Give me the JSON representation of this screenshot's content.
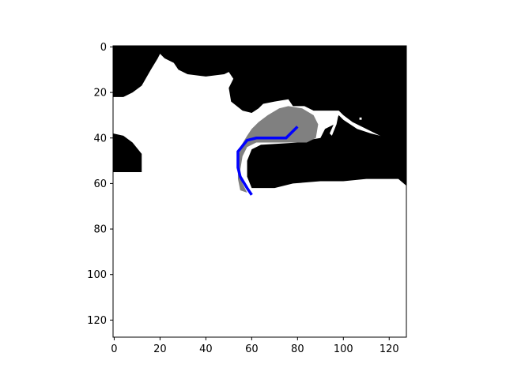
{
  "chart_data": {
    "type": "heatmap",
    "title": "",
    "xlabel": "",
    "ylabel": "",
    "grid": false,
    "legend": "none",
    "xlim": [
      -0.5,
      127.5
    ],
    "ylim": [
      127.5,
      -0.5
    ],
    "y_inverted": true,
    "x_ticks": [
      0,
      20,
      40,
      60,
      80,
      100,
      120
    ],
    "y_ticks": [
      0,
      20,
      40,
      60,
      80,
      100,
      120
    ],
    "colors": {
      "occupied": "#000000",
      "free": "#ffffff",
      "explored": "#808080",
      "path": "#0000ff",
      "axis": "#000000"
    },
    "occupancy_grid": {
      "description_units": "grid cells (col = x, row = y)",
      "occupied_boundary_top": [
        [
          0,
          22
        ],
        [
          4,
          22
        ],
        [
          8,
          20
        ],
        [
          12,
          17
        ],
        [
          16,
          10
        ],
        [
          19,
          5
        ],
        [
          20,
          3
        ],
        [
          22,
          5
        ],
        [
          26,
          7
        ],
        [
          28,
          10
        ],
        [
          32,
          12
        ],
        [
          40,
          13
        ],
        [
          48,
          12
        ],
        [
          50,
          11
        ],
        [
          52,
          14
        ],
        [
          50,
          18
        ],
        [
          51,
          24
        ],
        [
          56,
          28
        ],
        [
          60,
          29
        ],
        [
          63,
          27
        ],
        [
          65,
          25
        ],
        [
          70,
          24
        ],
        [
          76,
          23
        ],
        [
          78,
          26
        ],
        [
          83,
          26
        ],
        [
          87,
          28
        ],
        [
          90,
          34
        ],
        [
          92,
          36
        ],
        [
          98,
          28
        ],
        [
          98,
          30
        ],
        [
          96,
          34
        ],
        [
          94,
          38
        ],
        [
          90,
          40
        ],
        [
          84,
          41
        ],
        [
          80,
          42
        ],
        [
          64,
          43
        ],
        [
          56,
          44
        ]
      ],
      "occupied_boundary_bottom": [
        [
          0,
          38
        ],
        [
          4,
          39
        ],
        [
          8,
          42
        ],
        [
          12,
          47
        ],
        [
          12,
          55
        ],
        [
          0,
          55
        ],
        [
          54,
          60
        ],
        [
          60,
          62
        ],
        [
          70,
          62
        ],
        [
          78,
          60
        ],
        [
          90,
          59
        ],
        [
          100,
          59
        ],
        [
          110,
          58
        ],
        [
          124,
          58
        ],
        [
          127,
          61
        ]
      ],
      "explored_region": [
        [
          55,
          44
        ],
        [
          58,
          39
        ],
        [
          60,
          36
        ],
        [
          63,
          33
        ],
        [
          67,
          30
        ],
        [
          72,
          27
        ],
        [
          76,
          26
        ],
        [
          82,
          27
        ],
        [
          87,
          30
        ],
        [
          89,
          34
        ],
        [
          88,
          40
        ],
        [
          84,
          42
        ],
        [
          72,
          42
        ],
        [
          62,
          42
        ],
        [
          58,
          44
        ],
        [
          56,
          48
        ],
        [
          55,
          54
        ],
        [
          56,
          60
        ],
        [
          58,
          64
        ],
        [
          55,
          63
        ],
        [
          54,
          58
        ],
        [
          54,
          50
        ]
      ]
    },
    "series": [
      {
        "x": [
          80,
          75,
          62,
          58,
          54,
          54,
          55,
          58,
          60
        ],
        "y": [
          35,
          40,
          40,
          41,
          46,
          53,
          57,
          62,
          65
        ]
      }
    ]
  }
}
